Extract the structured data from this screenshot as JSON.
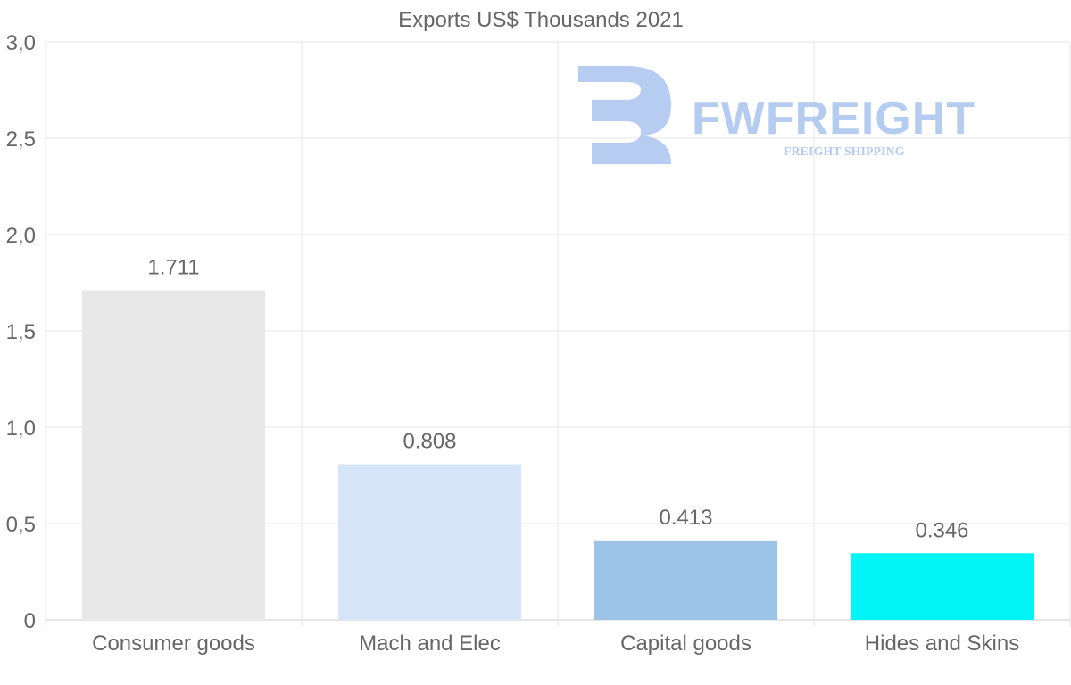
{
  "chart_data": {
    "type": "bar",
    "title": "Exports US$ Thousands 2021",
    "xlabel": "",
    "ylabel": "",
    "categories": [
      "Consumer goods",
      "Mach and Elec",
      "Capital goods",
      "Hides and Skins"
    ],
    "values": [
      1.711,
      0.808,
      0.413,
      0.346
    ],
    "value_labels": [
      "1.711",
      "0.808",
      "0.413",
      "0.346"
    ],
    "bar_colors": [
      "#e8e8e8",
      "#d6e6f8",
      "#9dc3e6",
      "#00f6f6"
    ],
    "ylim": [
      0,
      3.0
    ],
    "yticks": [
      0,
      0.5,
      1.0,
      1.5,
      2.0,
      2.5,
      3.0
    ],
    "ytick_labels": [
      "0",
      "0,5",
      "1,0",
      "1,5",
      "2,0",
      "2,5",
      "3,0"
    ],
    "grid": true,
    "legend": "none"
  },
  "watermark": {
    "brand": "FWFREIGHT",
    "tagline": "FREIGHT SHIPPING",
    "color": "#a9c4ef"
  }
}
